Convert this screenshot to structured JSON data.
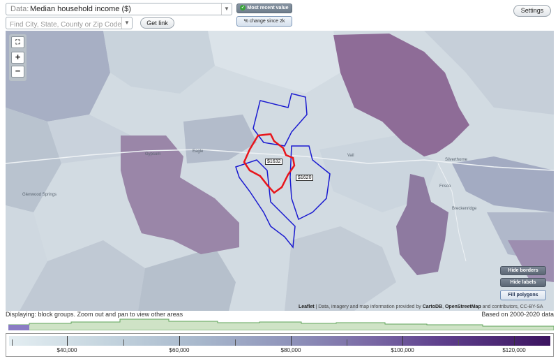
{
  "controls": {
    "data_prefix": "Data:",
    "data_selected": "Median household income ($)",
    "search_placeholder": "Find City, State, County or Zip Code",
    "get_link_label": "Get link",
    "settings_label": "Settings",
    "most_recent_label": "Most recent value",
    "pct_change_label": "% change since 2k"
  },
  "map": {
    "zoom_in": "+",
    "zoom_out": "−",
    "fullscreen": "⛶",
    "labels": [
      "Gypsum",
      "Eagle",
      "Vail",
      "Silverthorne",
      "Breckenridge",
      "Frisco",
      "Glenwood Springs"
    ],
    "value_tags": [
      "$1632",
      "$1620"
    ],
    "hide_borders_label": "Hide borders",
    "hide_labels_label": "Hide labels",
    "fill_polygons_label": "Fill polygons",
    "attribution_leaflet": "Leaflet",
    "attribution_text": "| Data, imagery and map information provided by",
    "attribution_carto": "CartoDB",
    "attribution_osm": "OpenStreetMap",
    "attribution_tail": "and contributors, CC-BY-SA",
    "colors": {
      "highlight_red": "#e8151b",
      "highlight_blue": "#1a1ad0",
      "purple": "#8e6c97"
    }
  },
  "status": {
    "displaying": "Displaying: block groups. Zoom out and pan to view other areas",
    "based_on": "Based on 2000-2020 data"
  },
  "legend": {
    "tick_labels": [
      "$40,000",
      "$60,000",
      "$80,000",
      "$100,000",
      "$120,000"
    ]
  }
}
